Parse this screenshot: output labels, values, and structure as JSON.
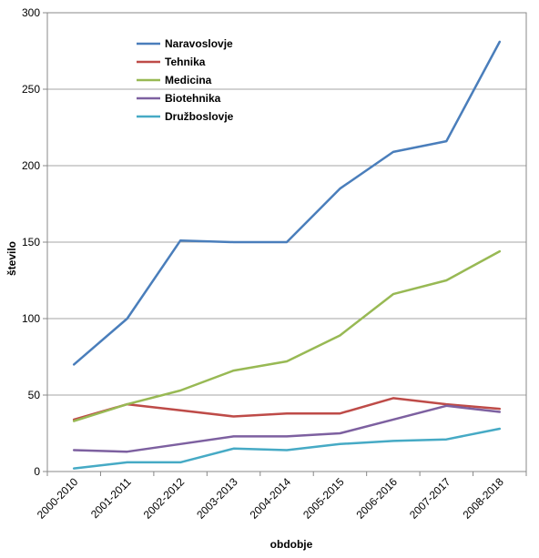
{
  "chart_data": {
    "type": "line",
    "title": "",
    "xlabel": "obdobje",
    "ylabel": "število",
    "categories": [
      "2000-2010",
      "2001-2011",
      "2002-2012",
      "2003-2013",
      "2004-2014",
      "2005-2015",
      "2006-2016",
      "2007-2017",
      "2008-2018"
    ],
    "y_ticks": [
      "0",
      "50",
      "100",
      "150",
      "200",
      "250",
      "300"
    ],
    "ylim": [
      0,
      300
    ],
    "grid": true,
    "legend_position": "top-left-inside",
    "series": [
      {
        "name": "Naravoslovje",
        "color": "#4A7EBB",
        "values": [
          70,
          100,
          151,
          150,
          150,
          185,
          209,
          216,
          281
        ]
      },
      {
        "name": "Tehnika",
        "color": "#BE4B48",
        "values": [
          34,
          44,
          40,
          36,
          38,
          38,
          48,
          44,
          41
        ]
      },
      {
        "name": "Medicina",
        "color": "#98B954",
        "values": [
          33,
          44,
          53,
          66,
          72,
          89,
          116,
          125,
          144
        ]
      },
      {
        "name": "Biotehnika",
        "color": "#7D60A0",
        "values": [
          14,
          13,
          18,
          23,
          23,
          25,
          34,
          43,
          39
        ]
      },
      {
        "name": "Družboslovje",
        "color": "#46AAC5",
        "values": [
          2,
          6,
          6,
          15,
          14,
          18,
          20,
          21,
          28
        ]
      }
    ]
  }
}
